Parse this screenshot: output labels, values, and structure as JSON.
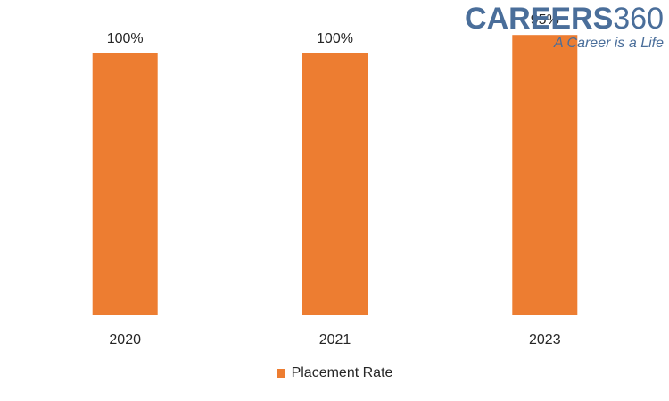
{
  "logo": {
    "word": "CAREERS",
    "number": "360",
    "tagline": "A Career is a Life"
  },
  "colors": {
    "bar": "#ed7d31",
    "axis": "#d9d9d9",
    "text": "#262626",
    "logo": "#4a6e9a"
  },
  "chart_data": {
    "type": "bar",
    "categories": [
      "2020",
      "2021",
      "2023"
    ],
    "series": [
      {
        "name": "Placement Rate",
        "values": [
          100,
          100,
          95
        ],
        "labels": [
          "100%",
          "100%",
          "95%"
        ]
      }
    ],
    "ylim": [
      90,
      100
    ],
    "grid": false,
    "legend_position": "bottom",
    "title": "",
    "xlabel": "",
    "ylabel": ""
  }
}
